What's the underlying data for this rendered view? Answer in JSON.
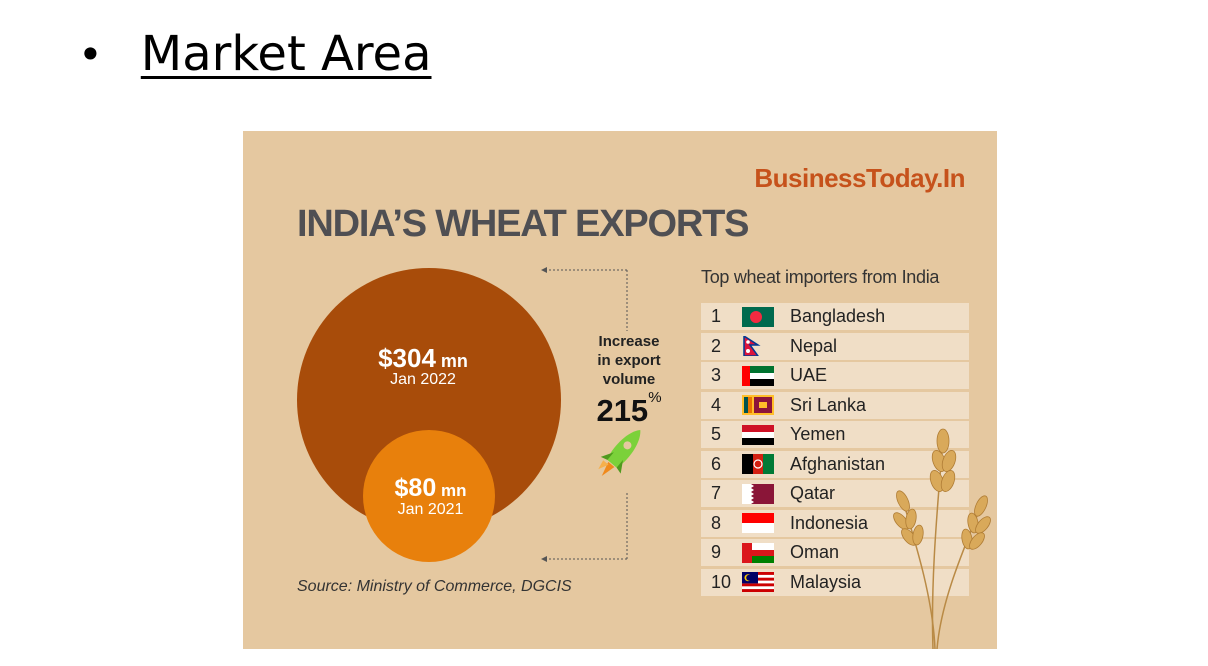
{
  "slide": {
    "bullet": "•",
    "title": "Market Area"
  },
  "infographic": {
    "brand": "BusinessToday.In",
    "headline": "INDIA’S WHEAT EXPORTS",
    "bubbles": {
      "big": {
        "amount": "$304",
        "unit": " mn",
        "date": "Jan 2022",
        "color": "#a84c0a"
      },
      "small": {
        "amount": "$80",
        "unit": " mn",
        "date": "Jan 2021",
        "color": "#e8800c"
      }
    },
    "increase": {
      "label_line1": "Increase",
      "label_line2": "in export",
      "label_line3": "volume",
      "value": "215",
      "unit": "%"
    },
    "source": "Source: Ministry of Commerce, DGCIS",
    "importers_title": "Top wheat importers from India",
    "importers": [
      {
        "rank": "1",
        "country": "Bangladesh",
        "flag": "bangladesh-flag-icon"
      },
      {
        "rank": "2",
        "country": "Nepal",
        "flag": "nepal-flag-icon"
      },
      {
        "rank": "3",
        "country": "UAE",
        "flag": "uae-flag-icon"
      },
      {
        "rank": "4",
        "country": "Sri Lanka",
        "flag": "sri-lanka-flag-icon"
      },
      {
        "rank": "5",
        "country": "Yemen",
        "flag": "yemen-flag-icon"
      },
      {
        "rank": "6",
        "country": "Afghanistan",
        "flag": "afghanistan-flag-icon"
      },
      {
        "rank": "7",
        "country": "Qatar",
        "flag": "qatar-flag-icon"
      },
      {
        "rank": "8",
        "country": "Indonesia",
        "flag": "indonesia-flag-icon"
      },
      {
        "rank": "9",
        "country": "Oman",
        "flag": "oman-flag-icon"
      },
      {
        "rank": "10",
        "country": "Malaysia",
        "flag": "malaysia-flag-icon"
      }
    ],
    "colors": {
      "background": "#e5c8a0",
      "brand": "#c6521b",
      "headline": "#4f4f53",
      "row": "#f0dec6"
    }
  },
  "chart_data": {
    "type": "bubble",
    "title": "INDIA’S WHEAT EXPORTS",
    "categories": [
      "Jan 2022",
      "Jan 2021"
    ],
    "values": [
      304,
      80
    ],
    "unit": "$ mn",
    "annotation": "Increase in export volume 215%"
  }
}
